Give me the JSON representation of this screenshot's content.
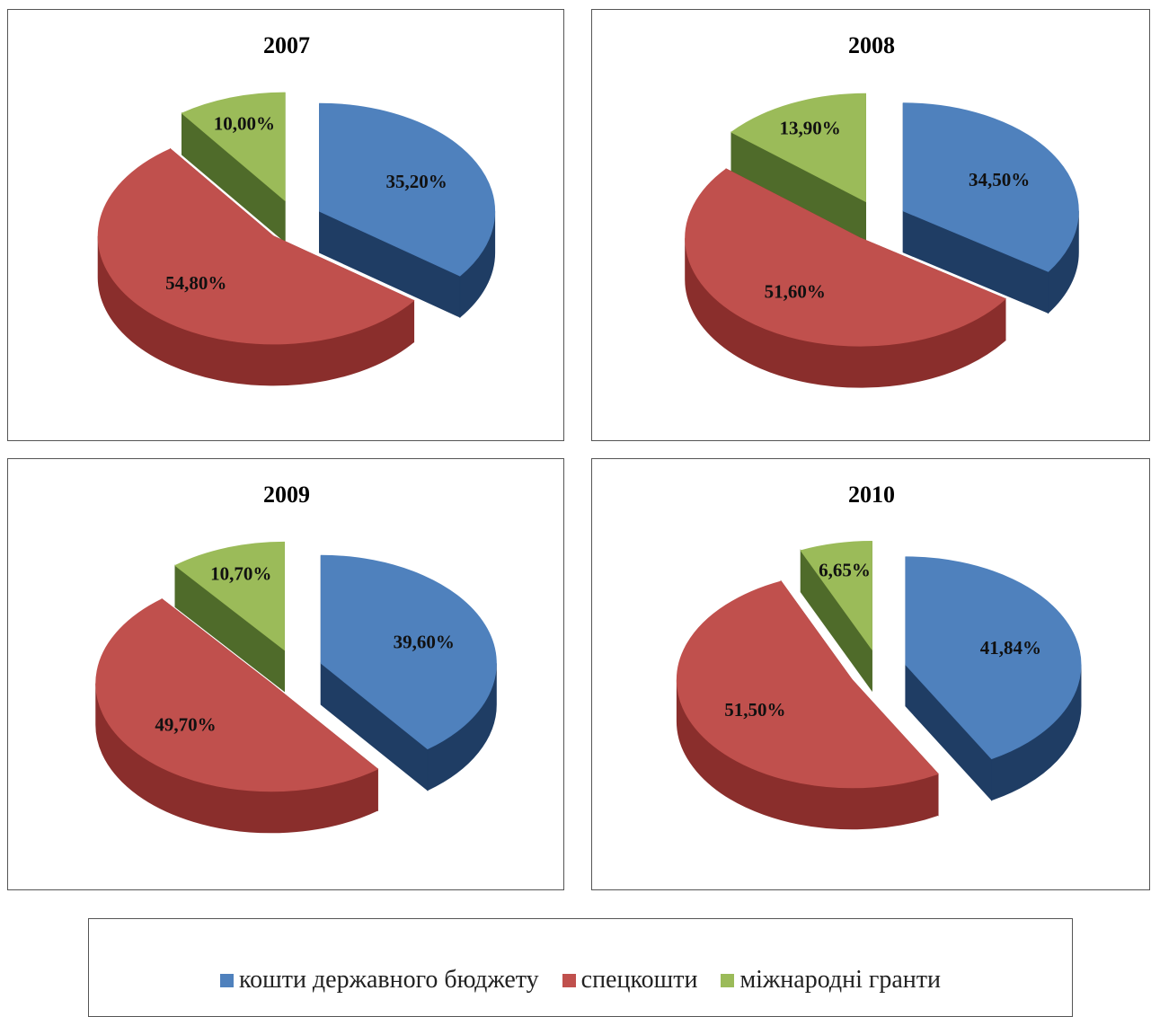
{
  "chart_data": [
    {
      "type": "pie",
      "title": "2007",
      "categories": [
        "кошти державного бюджету",
        "спецкошти",
        "міжнародні гранти"
      ],
      "values": [
        35.2,
        54.8,
        10.0
      ],
      "labels": [
        "35,20%",
        "54,80%",
        "10,00%"
      ]
    },
    {
      "type": "pie",
      "title": "2008",
      "categories": [
        "кошти державного бюджету",
        "спецкошти",
        "міжнародні гранти"
      ],
      "values": [
        34.5,
        51.6,
        13.9
      ],
      "labels": [
        "34,50%",
        "51,60%",
        "13,90%"
      ]
    },
    {
      "type": "pie",
      "title": "2009",
      "categories": [
        "кошти державного бюджету",
        "спецкошти",
        "міжнародні гранти"
      ],
      "values": [
        39.6,
        49.7,
        10.7
      ],
      "labels": [
        "39,60%",
        "49,70%",
        "10,70%"
      ]
    },
    {
      "type": "pie",
      "title": "2010",
      "categories": [
        "кошти державного бюджету",
        "спецкошти",
        "міжнародні гранти"
      ],
      "values": [
        41.84,
        51.5,
        6.65
      ],
      "labels": [
        "41,84%",
        "51,50%",
        "6,65%"
      ]
    }
  ],
  "legend": {
    "placement": "bottom",
    "items": [
      {
        "label": "кошти державного бюджету",
        "color": "#4f81bd"
      },
      {
        "label": "спецкошти",
        "color": "#c0504d"
      },
      {
        "label": "міжнародні гранти",
        "color": "#9bbb59"
      }
    ]
  },
  "colors": {
    "top": [
      "#4f81bd",
      "#c0504d",
      "#9bbb59"
    ],
    "side": [
      "#1f3d64",
      "#8a2e2c",
      "#4f6b2a"
    ]
  }
}
